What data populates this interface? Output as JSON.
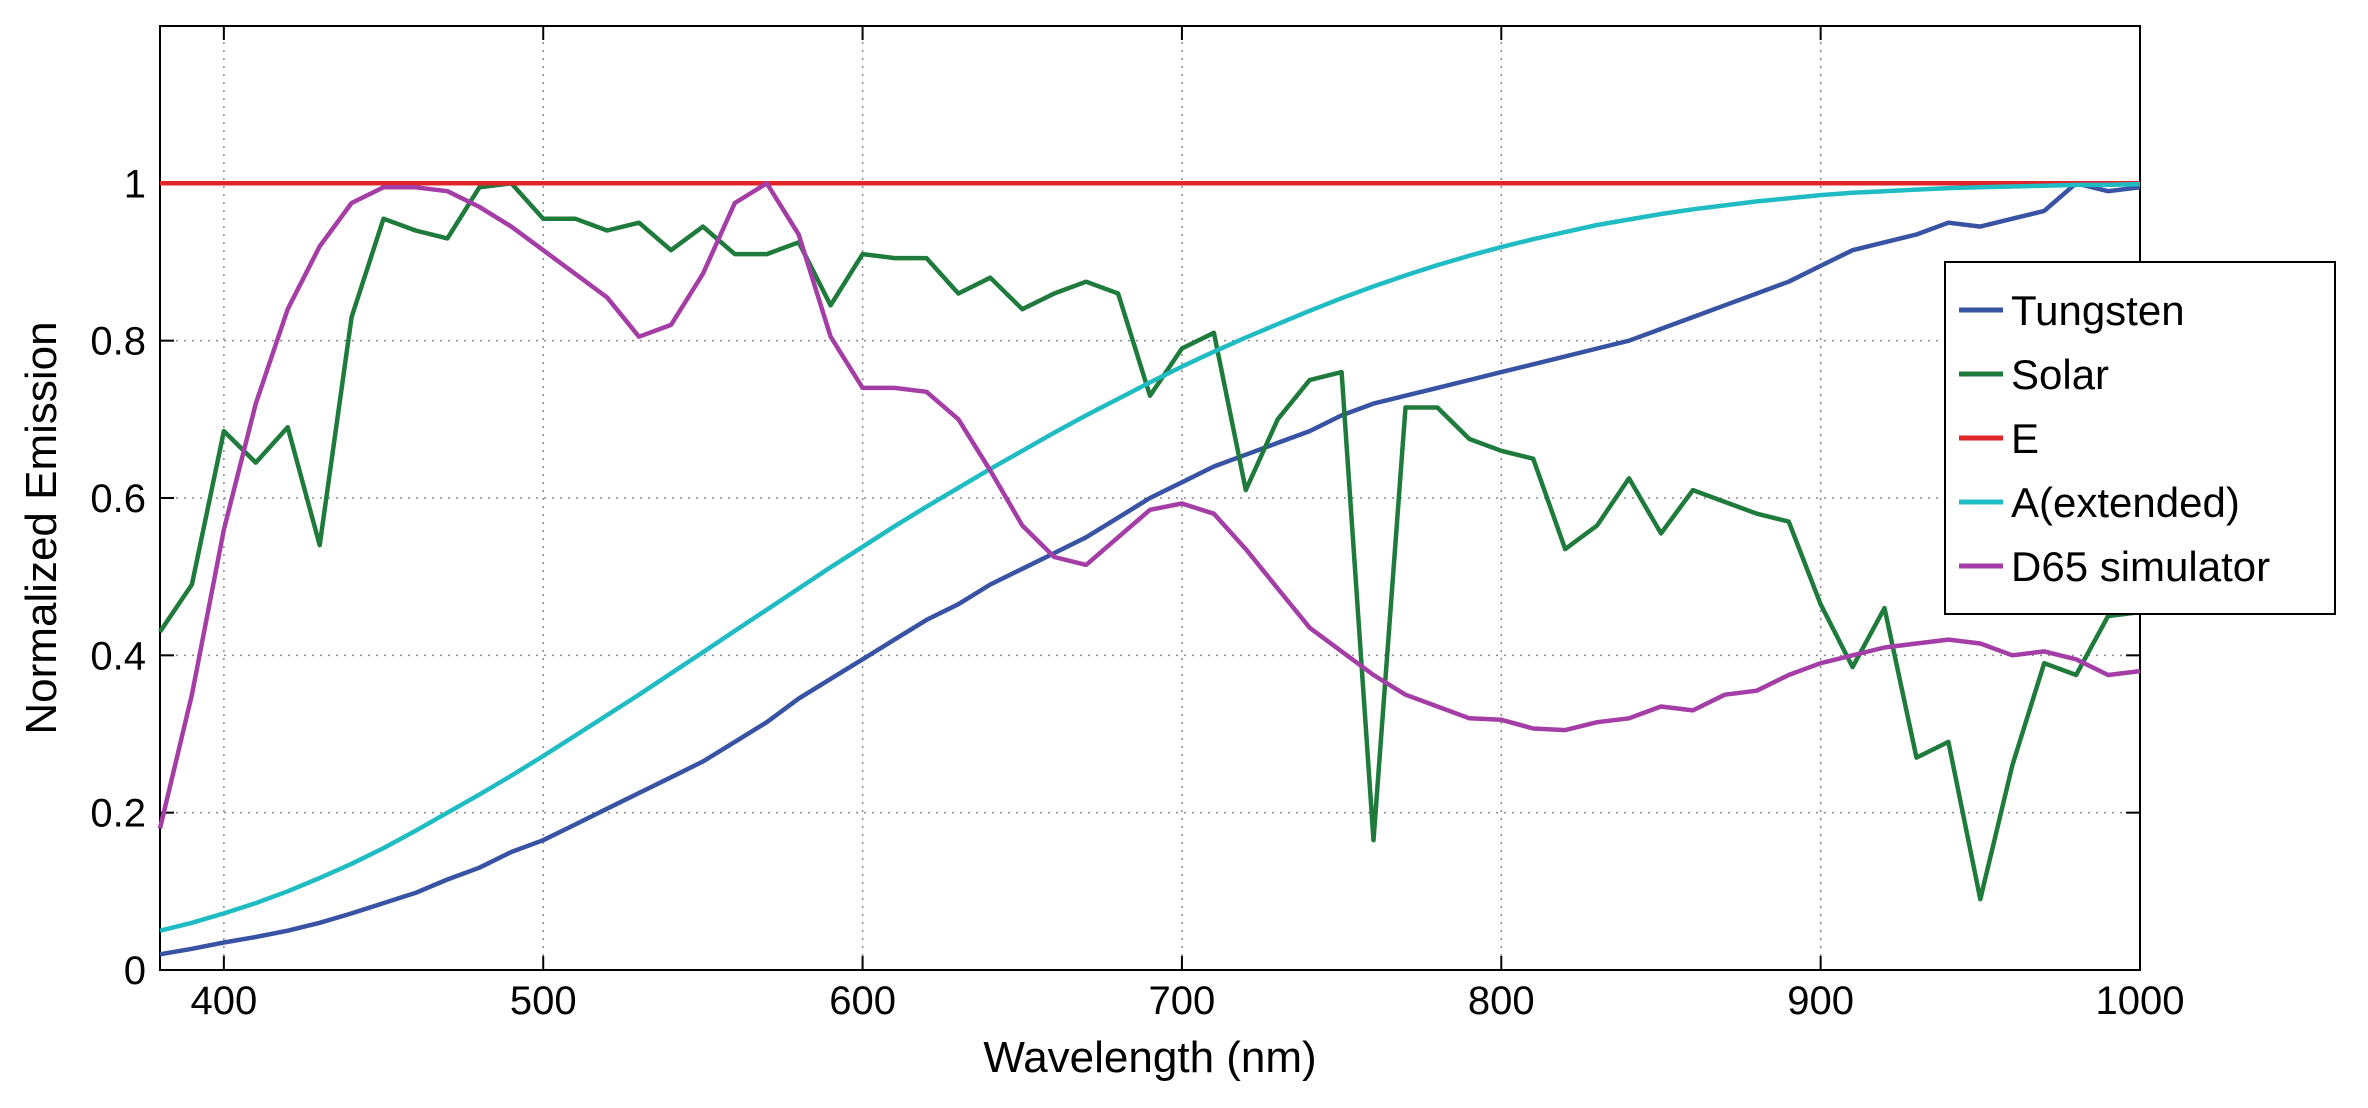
{
  "chart_data": {
    "type": "line",
    "title": "",
    "xlabel": "Wavelength (nm)",
    "ylabel": "Normalized Emission",
    "xlim": [
      380,
      1000
    ],
    "ylim": [
      0,
      1.2
    ],
    "x_ticks": [
      400,
      500,
      600,
      700,
      800,
      900,
      1000
    ],
    "y_ticks": [
      0,
      0.2,
      0.4,
      0.6,
      0.8,
      1
    ],
    "x_tick_labels": [
      "400",
      "500",
      "600",
      "700",
      "800",
      "900",
      "1000"
    ],
    "y_tick_labels": [
      "0",
      "0.2",
      "0.4",
      "0.6",
      "0.8",
      "1"
    ],
    "grid": true,
    "legend_position": "right",
    "x": [
      380,
      390,
      400,
      410,
      420,
      430,
      440,
      450,
      460,
      470,
      480,
      490,
      500,
      510,
      520,
      530,
      540,
      550,
      560,
      570,
      580,
      590,
      600,
      610,
      620,
      630,
      640,
      650,
      660,
      670,
      680,
      690,
      700,
      710,
      720,
      730,
      740,
      750,
      760,
      770,
      780,
      790,
      800,
      810,
      820,
      830,
      840,
      850,
      860,
      870,
      880,
      890,
      900,
      910,
      920,
      930,
      940,
      950,
      960,
      970,
      980,
      990,
      1000
    ],
    "series": [
      {
        "name": "Tungsten",
        "color": "#3953a4",
        "values": [
          0.02,
          0.027,
          0.035,
          0.042,
          0.05,
          0.06,
          0.072,
          0.085,
          0.098,
          0.115,
          0.13,
          0.15,
          0.165,
          0.185,
          0.205,
          0.225,
          0.245,
          0.265,
          0.29,
          0.315,
          0.345,
          0.37,
          0.395,
          0.42,
          0.445,
          0.465,
          0.49,
          0.51,
          0.53,
          0.55,
          0.575,
          0.6,
          0.62,
          0.64,
          0.655,
          0.67,
          0.685,
          0.705,
          0.72,
          0.73,
          0.74,
          0.75,
          0.76,
          0.77,
          0.78,
          0.79,
          0.8,
          0.815,
          0.83,
          0.845,
          0.86,
          0.875,
          0.895,
          0.915,
          0.925,
          0.935,
          0.95,
          0.945,
          0.955,
          0.965,
          1.0,
          0.99,
          0.995
        ]
      },
      {
        "name": "Solar",
        "color": "#1e7b3c",
        "values": [
          0.43,
          0.49,
          0.685,
          0.645,
          0.69,
          0.54,
          0.83,
          0.955,
          0.94,
          0.93,
          0.995,
          1.0,
          0.955,
          0.955,
          0.94,
          0.95,
          0.915,
          0.945,
          0.91,
          0.91,
          0.925,
          0.845,
          0.91,
          0.905,
          0.905,
          0.86,
          0.88,
          0.84,
          0.86,
          0.875,
          0.86,
          0.73,
          0.79,
          0.81,
          0.61,
          0.7,
          0.75,
          0.76,
          0.165,
          0.715,
          0.715,
          0.675,
          0.66,
          0.65,
          0.535,
          0.565,
          0.625,
          0.555,
          0.61,
          0.595,
          0.58,
          0.57,
          0.465,
          0.385,
          0.46,
          0.27,
          0.29,
          0.09,
          0.26,
          0.39,
          0.375,
          0.45,
          0.455
        ]
      },
      {
        "name": "E",
        "color": "#e0242a",
        "values": [
          1,
          1,
          1,
          1,
          1,
          1,
          1,
          1,
          1,
          1,
          1,
          1,
          1,
          1,
          1,
          1,
          1,
          1,
          1,
          1,
          1,
          1,
          1,
          1,
          1,
          1,
          1,
          1,
          1,
          1,
          1,
          1,
          1,
          1,
          1,
          1,
          1,
          1,
          1,
          1,
          1,
          1,
          1,
          1,
          1,
          1,
          1,
          1,
          1,
          1,
          1,
          1,
          1,
          1,
          1,
          1,
          1,
          1,
          1,
          1,
          1,
          1,
          1
        ]
      },
      {
        "name": "A(extended)",
        "color": "#1fbcc4",
        "values": [
          0.05,
          0.06,
          0.072,
          0.085,
          0.1,
          0.117,
          0.135,
          0.155,
          0.177,
          0.2,
          0.223,
          0.247,
          0.272,
          0.298,
          0.324,
          0.35,
          0.377,
          0.404,
          0.431,
          0.458,
          0.485,
          0.512,
          0.538,
          0.564,
          0.589,
          0.613,
          0.637,
          0.66,
          0.683,
          0.705,
          0.726,
          0.747,
          0.767,
          0.786,
          0.804,
          0.821,
          0.838,
          0.854,
          0.869,
          0.883,
          0.896,
          0.908,
          0.919,
          0.929,
          0.938,
          0.947,
          0.954,
          0.961,
          0.967,
          0.972,
          0.977,
          0.981,
          0.985,
          0.988,
          0.99,
          0.992,
          0.994,
          0.995,
          0.996,
          0.997,
          0.998,
          0.998,
          0.999
        ]
      },
      {
        "name": "D65 simulator",
        "color": "#a43ea6",
        "values": [
          0.18,
          0.35,
          0.56,
          0.72,
          0.84,
          0.92,
          0.975,
          0.995,
          0.995,
          0.99,
          0.97,
          0.945,
          0.915,
          0.885,
          0.855,
          0.805,
          0.82,
          0.885,
          0.975,
          1.0,
          0.935,
          0.805,
          0.74,
          0.74,
          0.735,
          0.7,
          0.635,
          0.565,
          0.525,
          0.515,
          0.55,
          0.585,
          0.593,
          0.58,
          0.535,
          0.485,
          0.435,
          0.405,
          0.375,
          0.35,
          0.335,
          0.32,
          0.318,
          0.307,
          0.305,
          0.315,
          0.32,
          0.335,
          0.33,
          0.35,
          0.355,
          0.375,
          0.39,
          0.4,
          0.41,
          0.415,
          0.42,
          0.415,
          0.4,
          0.405,
          0.395,
          0.375,
          0.38
        ]
      }
    ]
  }
}
